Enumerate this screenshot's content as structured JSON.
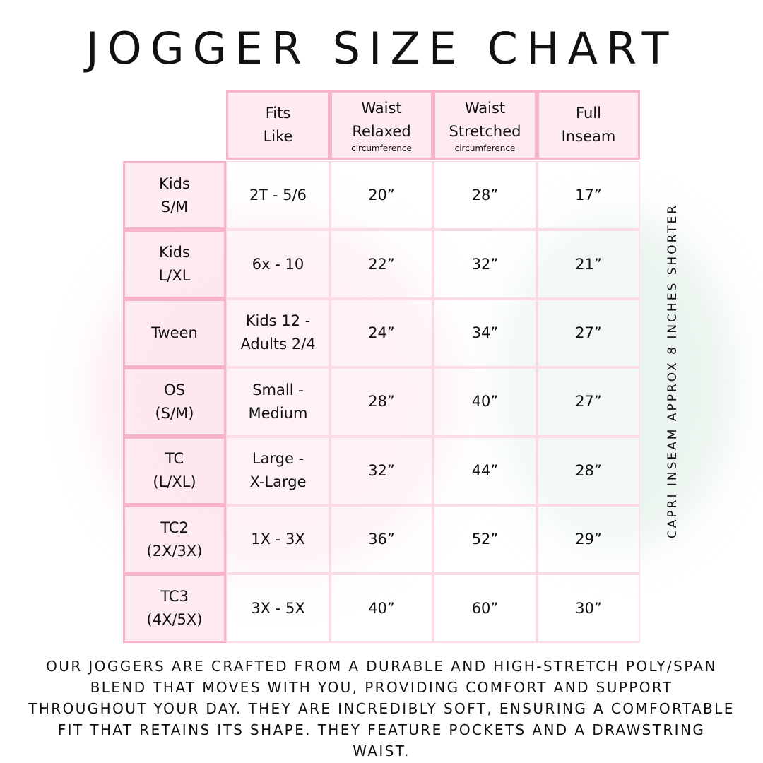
{
  "title": "Jogger Size Chart",
  "header": [
    {
      "line1": "Fits",
      "line2": "Like",
      "sub": ""
    },
    {
      "line1": "Waist",
      "line2": "Relaxed",
      "sub": "circumference"
    },
    {
      "line1": "Waist",
      "line2": "Stretched",
      "sub": "circumference"
    },
    {
      "line1": "Full",
      "line2": "Inseam",
      "sub": ""
    }
  ],
  "rows": [
    {
      "size1": "Kids",
      "size2": "S/M",
      "fit1": "2T - 5/6",
      "fit2": "",
      "relaxed": "20”",
      "stretched": "28”",
      "inseam": "17”"
    },
    {
      "size1": "Kids",
      "size2": "L/XL",
      "fit1": "6x - 10",
      "fit2": "",
      "relaxed": "22”",
      "stretched": "32”",
      "inseam": "21”"
    },
    {
      "size1": "Tween",
      "size2": "",
      "fit1": "Kids 12 -",
      "fit2": "Adults 2/4",
      "relaxed": "24”",
      "stretched": "34”",
      "inseam": "27”"
    },
    {
      "size1": "OS",
      "size2": "(S/M)",
      "fit1": "Small -",
      "fit2": "Medium",
      "relaxed": "28”",
      "stretched": "40”",
      "inseam": "27”"
    },
    {
      "size1": "TC",
      "size2": "(L/XL)",
      "fit1": "Large -",
      "fit2": "X-Large",
      "relaxed": "32”",
      "stretched": "44”",
      "inseam": "28”"
    },
    {
      "size1": "TC2",
      "size2": "(2X/3X)",
      "fit1": "1X - 3X",
      "fit2": "",
      "relaxed": "36”",
      "stretched": "52”",
      "inseam": "29”"
    },
    {
      "size1": "TC3",
      "size2": "(4X/5X)",
      "fit1": "3X - 5X",
      "fit2": "",
      "relaxed": "40”",
      "stretched": "60”",
      "inseam": "30”"
    }
  ],
  "side_note": "Capri inseam approx 8 inches shorter",
  "footer": "Our joggers are crafted from a durable and high-stretch poly/span blend that moves with you, providing comfort and support throughout your day. They are incredibly soft, ensuring a comfortable fit that retains its shape. They feature pockets and a drawstring waist.",
  "colors": {
    "border": "#f7b3c9",
    "header_fill": "#fde8ef"
  }
}
